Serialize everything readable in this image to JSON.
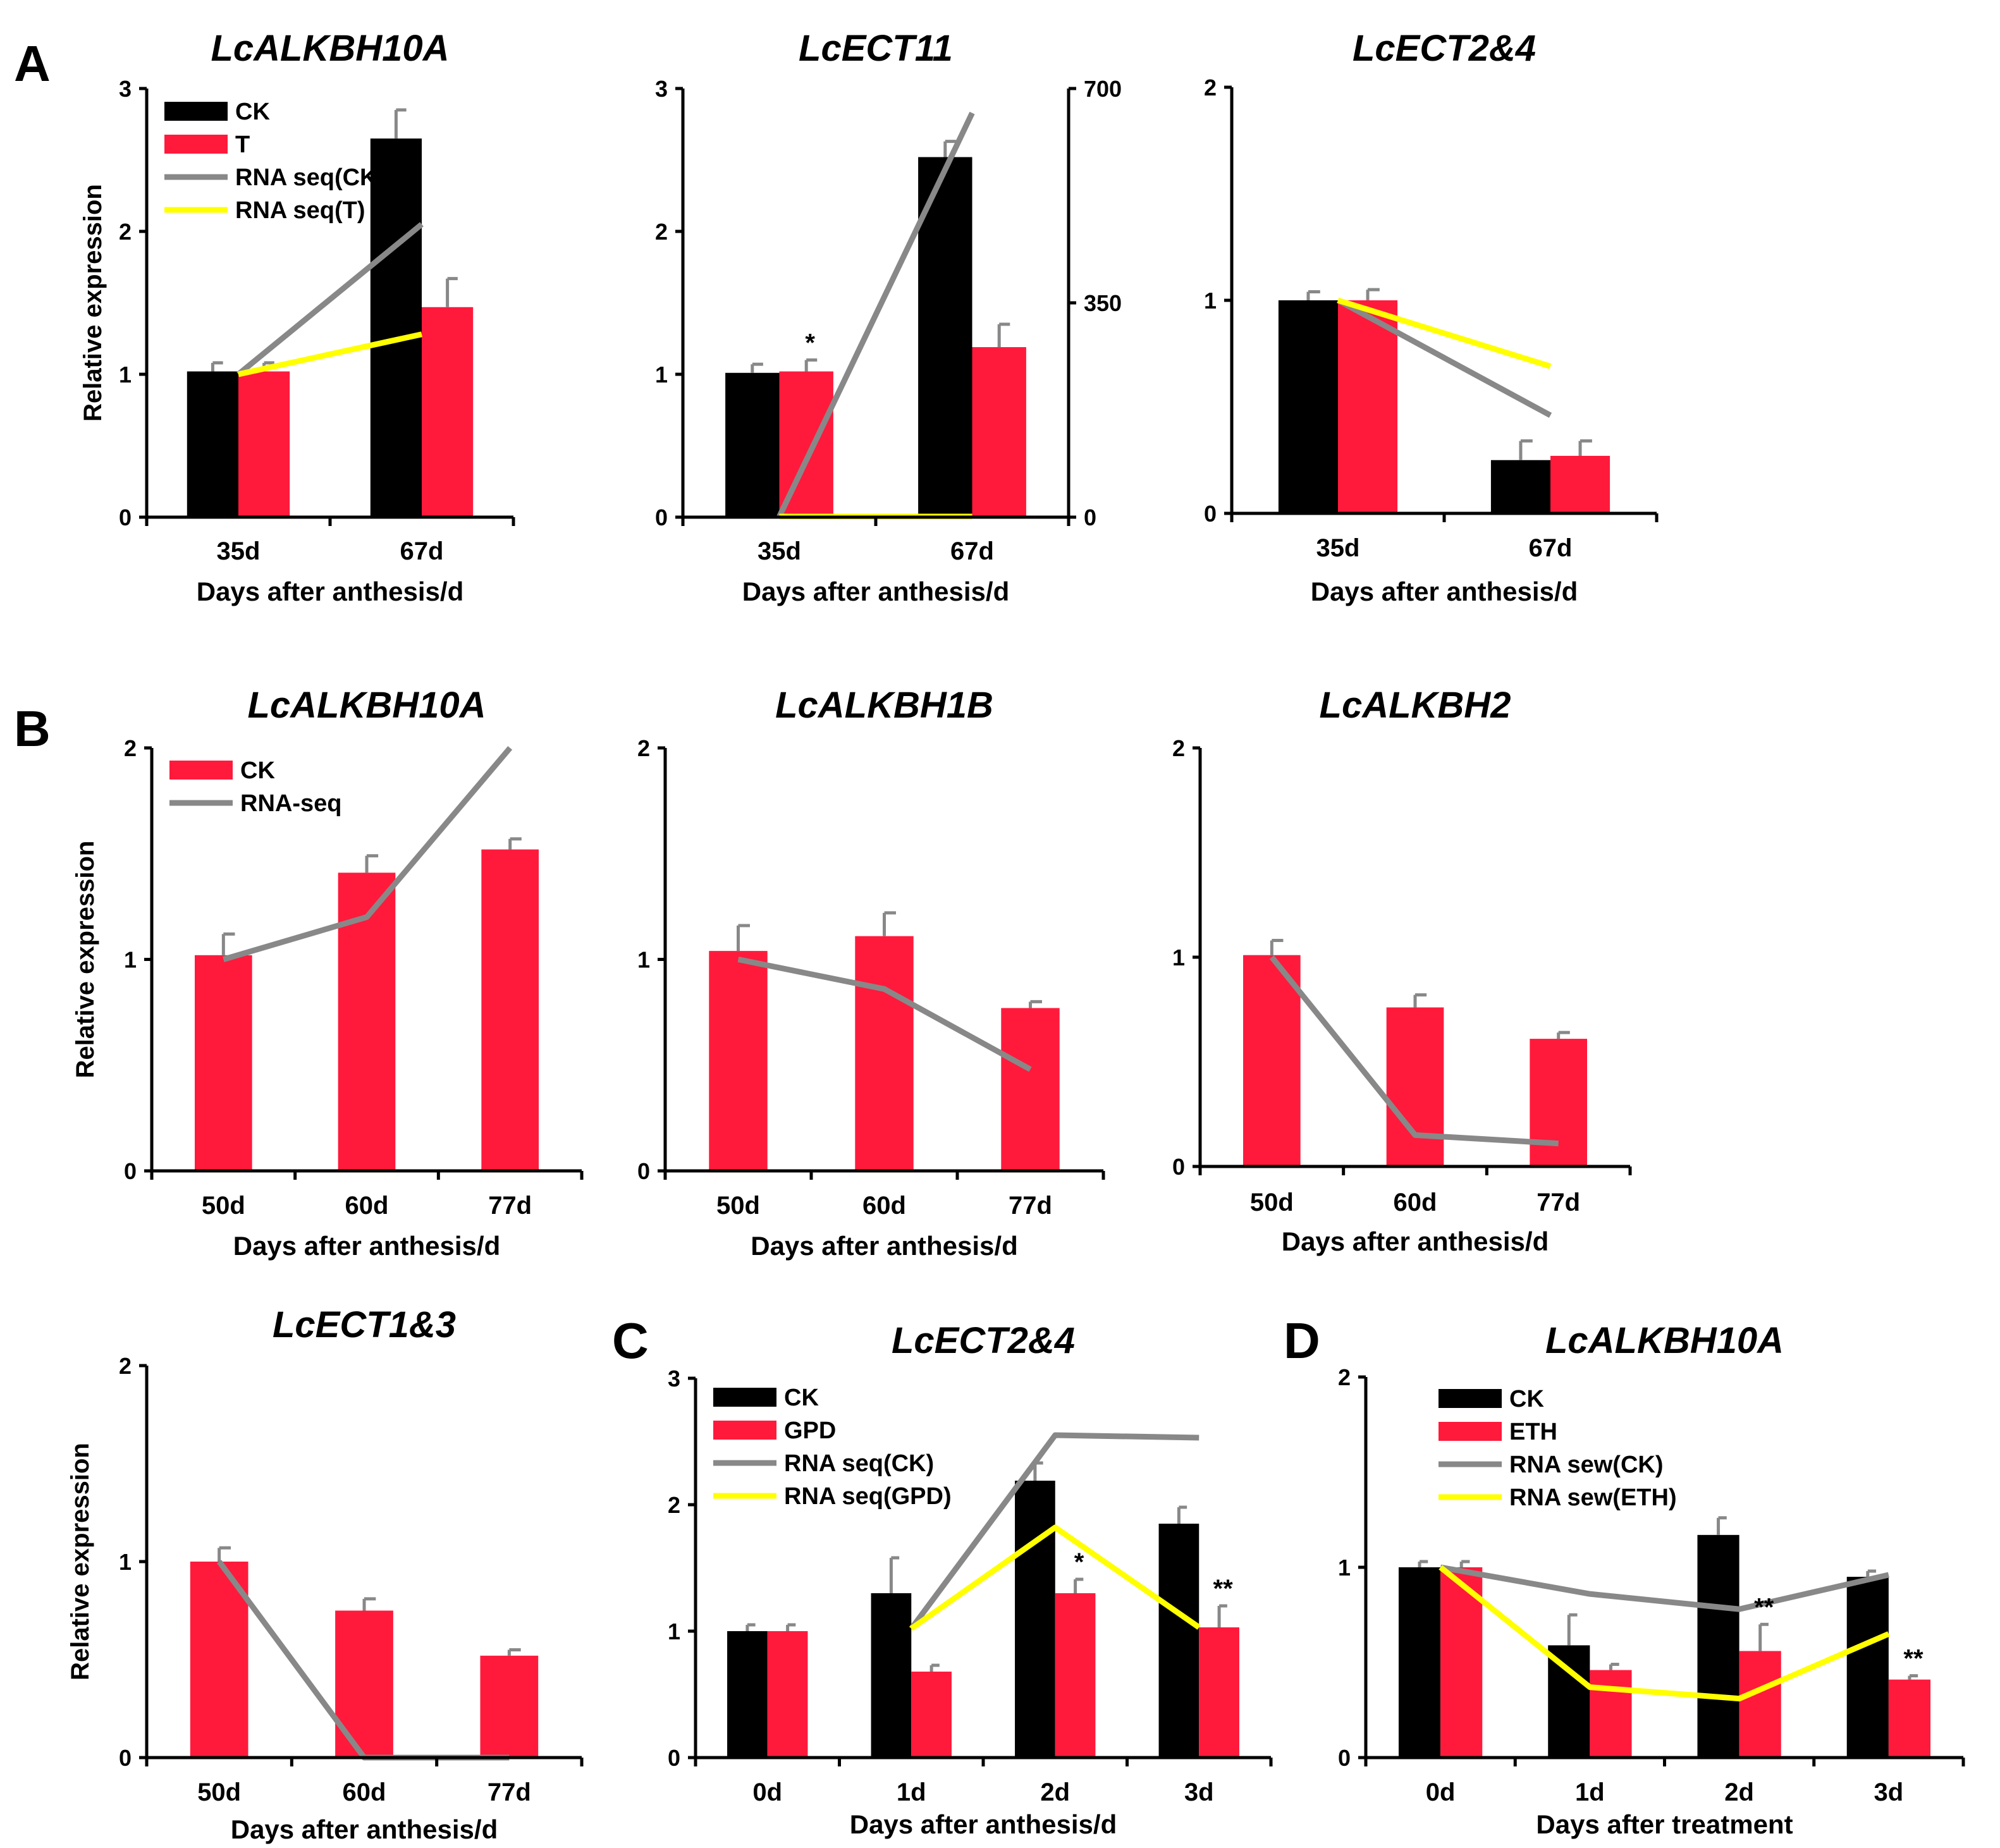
{
  "panel_labels": [
    "A",
    "B",
    "C",
    "D"
  ],
  "colors": {
    "ck": "#000000",
    "treat": "#ff1a3c",
    "rna_ck": "#888888",
    "rna_t": "#ffff00",
    "err": "#888888"
  },
  "chart_data": [
    {
      "type": "bar",
      "panel": "A",
      "title": "LcALKBH10A",
      "xlabel": "Days after anthesis/d",
      "ylabel": "Relative expression",
      "categories": [
        "35d",
        "67d"
      ],
      "ylim": [
        0,
        3
      ],
      "yticks": [
        "0",
        "1",
        "2",
        "3"
      ],
      "series": [
        {
          "name": "CK",
          "color": "#000000",
          "values": [
            1.02,
            2.65
          ],
          "errors": [
            0.06,
            0.2
          ]
        },
        {
          "name": "T",
          "color": "#ff1a3c",
          "values": [
            1.02,
            1.47
          ],
          "errors": [
            0.06,
            0.2
          ]
        }
      ],
      "lines": [
        {
          "name": "RNA seq(CK)",
          "color": "#888888",
          "values": [
            1.0,
            2.05
          ]
        },
        {
          "name": "RNA seq(T)",
          "color": "#ffff00",
          "values": [
            1.0,
            1.28
          ]
        }
      ],
      "legend": [
        {
          "label": "CK",
          "kind": "bar",
          "color": "#000000"
        },
        {
          "label": "T",
          "kind": "bar",
          "color": "#ff1a3c"
        },
        {
          "label": "RNA seq(CK)",
          "kind": "line",
          "color": "#888888"
        },
        {
          "label": "RNA seq(T)",
          "kind": "line",
          "color": "#ffff00"
        }
      ],
      "annotations": []
    },
    {
      "type": "bar",
      "panel": "",
      "title": "LcECT11",
      "xlabel": "Days after anthesis/d",
      "ylabel": "",
      "categories": [
        "35d",
        "67d"
      ],
      "ylim": [
        0,
        3
      ],
      "yticks": [
        "0",
        "1",
        "2",
        "3"
      ],
      "y2lim": [
        0,
        700
      ],
      "y2ticks": [
        "0",
        "350",
        "700"
      ],
      "series": [
        {
          "name": "CK",
          "color": "#000000",
          "values": [
            1.01,
            2.52
          ],
          "errors": [
            0.06,
            0.11
          ]
        },
        {
          "name": "T",
          "color": "#ff1a3c",
          "values": [
            1.02,
            1.19
          ],
          "errors": [
            0.08,
            0.16
          ]
        }
      ],
      "lines": [
        {
          "name": "RNA seq(CK)",
          "color": "#888888",
          "values": [
            1,
            660
          ],
          "axis": "right"
        },
        {
          "name": "RNA seq(T)",
          "color": "#ffff00",
          "values": [
            1,
            1
          ],
          "axis": "right"
        }
      ],
      "legend": [],
      "annotations": [
        {
          "category": 0,
          "series": 1,
          "text": "*"
        }
      ]
    },
    {
      "type": "bar",
      "panel": "",
      "title": "LcECT2&4",
      "xlabel": "Days after anthesis/d",
      "ylabel": "",
      "categories": [
        "35d",
        "67d"
      ],
      "ylim": [
        0,
        2
      ],
      "yticks": [
        "0",
        "1",
        "2"
      ],
      "series": [
        {
          "name": "CK",
          "color": "#000000",
          "values": [
            1.0,
            0.25
          ],
          "errors": [
            0.04,
            0.09
          ]
        },
        {
          "name": "T",
          "color": "#ff1a3c",
          "values": [
            1.0,
            0.27
          ],
          "errors": [
            0.05,
            0.07
          ]
        }
      ],
      "lines": [
        {
          "name": "RNA seq(CK)",
          "color": "#888888",
          "values": [
            1.0,
            0.46
          ]
        },
        {
          "name": "RNA seq(T)",
          "color": "#ffff00",
          "values": [
            1.0,
            0.69
          ]
        }
      ],
      "legend": [],
      "annotations": []
    },
    {
      "type": "bar",
      "panel": "B",
      "title": "LcALKBH10A",
      "xlabel": "Days after anthesis/d",
      "ylabel": "Relative expression",
      "categories": [
        "50d",
        "60d",
        "77d"
      ],
      "ylim": [
        0,
        2
      ],
      "yticks": [
        "0",
        "1",
        "2"
      ],
      "series": [
        {
          "name": "CK",
          "color": "#ff1a3c",
          "values": [
            1.02,
            1.41,
            1.52
          ],
          "errors": [
            0.1,
            0.08,
            0.05
          ]
        }
      ],
      "lines": [
        {
          "name": "RNA-seq",
          "color": "#888888",
          "values": [
            1.0,
            1.2,
            2.0
          ]
        }
      ],
      "legend": [
        {
          "label": "CK",
          "kind": "bar",
          "color": "#ff1a3c"
        },
        {
          "label": "RNA-seq",
          "kind": "line",
          "color": "#888888"
        }
      ],
      "annotations": []
    },
    {
      "type": "bar",
      "panel": "",
      "title": "LcALKBH1B",
      "xlabel": "Days after anthesis/d",
      "ylabel": "",
      "categories": [
        "50d",
        "60d",
        "77d"
      ],
      "ylim": [
        0,
        2
      ],
      "yticks": [
        "0",
        "1",
        "2"
      ],
      "series": [
        {
          "name": "CK",
          "color": "#ff1a3c",
          "values": [
            1.04,
            1.11,
            0.77
          ],
          "errors": [
            0.12,
            0.11,
            0.03
          ]
        }
      ],
      "lines": [
        {
          "name": "RNA-seq",
          "color": "#888888",
          "values": [
            1.0,
            0.86,
            0.48
          ]
        }
      ],
      "legend": [],
      "annotations": []
    },
    {
      "type": "bar",
      "panel": "",
      "title": "LcALKBH2",
      "xlabel": "Days after anthesis/d",
      "ylabel": "",
      "categories": [
        "50d",
        "60d",
        "77d"
      ],
      "ylim": [
        0,
        2
      ],
      "yticks": [
        "0",
        "1",
        "2"
      ],
      "series": [
        {
          "name": "CK",
          "color": "#ff1a3c",
          "values": [
            1.01,
            0.76,
            0.61
          ],
          "errors": [
            0.07,
            0.06,
            0.03
          ]
        }
      ],
      "lines": [
        {
          "name": "RNA-seq",
          "color": "#888888",
          "values": [
            1.0,
            0.15,
            0.11
          ]
        }
      ],
      "legend": [],
      "annotations": []
    },
    {
      "type": "bar",
      "panel": "",
      "title": "LcECT1&3",
      "xlabel": "Days after anthesis/d",
      "ylabel": "Relative expression",
      "categories": [
        "50d",
        "60d",
        "77d"
      ],
      "ylim": [
        0,
        2
      ],
      "yticks": [
        "0",
        "1",
        "2"
      ],
      "series": [
        {
          "name": "CK",
          "color": "#ff1a3c",
          "values": [
            1.0,
            0.75,
            0.52
          ],
          "errors": [
            0.07,
            0.06,
            0.03
          ]
        }
      ],
      "lines": [
        {
          "name": "RNA-seq",
          "color": "#888888",
          "values": [
            1.0,
            0.0,
            0.0
          ]
        }
      ],
      "legend": [],
      "annotations": []
    },
    {
      "type": "bar",
      "panel": "C",
      "title": "LcECT2&4",
      "xlabel": "Days after anthesis/d",
      "ylabel": "",
      "categories": [
        "0d",
        "1d",
        "2d",
        "3d"
      ],
      "ylim": [
        0,
        3
      ],
      "yticks": [
        "0",
        "1",
        "2",
        "3"
      ],
      "series": [
        {
          "name": "CK",
          "color": "#000000",
          "values": [
            1.0,
            1.3,
            2.19,
            1.85
          ],
          "errors": [
            0.05,
            0.28,
            0.14,
            0.13
          ]
        },
        {
          "name": "GPD",
          "color": "#ff1a3c",
          "values": [
            1.0,
            0.68,
            1.3,
            1.03
          ],
          "errors": [
            0.05,
            0.05,
            0.11,
            0.17
          ]
        }
      ],
      "lines": [
        {
          "name": "RNA seq(CK)",
          "color": "#888888",
          "values": [
            null,
            1.02,
            2.55,
            2.53
          ]
        },
        {
          "name": "RNA seq(GPD)",
          "color": "#ffff00",
          "values": [
            null,
            1.02,
            1.82,
            1.03
          ]
        }
      ],
      "legend": [
        {
          "label": "CK",
          "kind": "bar",
          "color": "#000000"
        },
        {
          "label": "GPD",
          "kind": "bar",
          "color": "#ff1a3c"
        },
        {
          "label": "RNA seq(CK)",
          "kind": "line",
          "color": "#888888"
        },
        {
          "label": "RNA seq(GPD)",
          "kind": "line",
          "color": "#ffff00"
        }
      ],
      "annotations": [
        {
          "category": 2,
          "series": 1,
          "text": "*"
        },
        {
          "category": 3,
          "series": 1,
          "text": "**"
        }
      ]
    },
    {
      "type": "bar",
      "panel": "D",
      "title": "LcALKBH10A",
      "xlabel": "Days after treatment",
      "ylabel": "",
      "categories": [
        "0d",
        "1d",
        "2d",
        "3d"
      ],
      "ylim": [
        0,
        2
      ],
      "yticks": [
        "0",
        "1",
        "2"
      ],
      "series": [
        {
          "name": "CK",
          "color": "#000000",
          "values": [
            1.0,
            0.59,
            1.17,
            0.95
          ],
          "errors": [
            0.03,
            0.16,
            0.09,
            0.03
          ]
        },
        {
          "name": "ETH",
          "color": "#ff1a3c",
          "values": [
            1.0,
            0.46,
            0.56,
            0.41
          ],
          "errors": [
            0.03,
            0.03,
            0.14,
            0.02
          ]
        }
      ],
      "lines": [
        {
          "name": "RNA sew(CK)",
          "color": "#888888",
          "values": [
            1.0,
            0.86,
            0.78,
            0.96
          ]
        },
        {
          "name": "RNA sew(ETH)",
          "color": "#ffff00",
          "values": [
            1.0,
            0.37,
            0.31,
            0.65
          ]
        }
      ],
      "legend": [
        {
          "label": "CK",
          "kind": "bar",
          "color": "#000000"
        },
        {
          "label": "ETH",
          "kind": "bar",
          "color": "#ff1a3c"
        },
        {
          "label": "RNA sew(CK)",
          "kind": "line",
          "color": "#888888"
        },
        {
          "label": "RNA sew(ETH)",
          "kind": "line",
          "color": "#ffff00"
        }
      ],
      "annotations": [
        {
          "category": 2,
          "series": 1,
          "text": "**"
        },
        {
          "category": 3,
          "series": 1,
          "text": "**"
        }
      ]
    }
  ]
}
